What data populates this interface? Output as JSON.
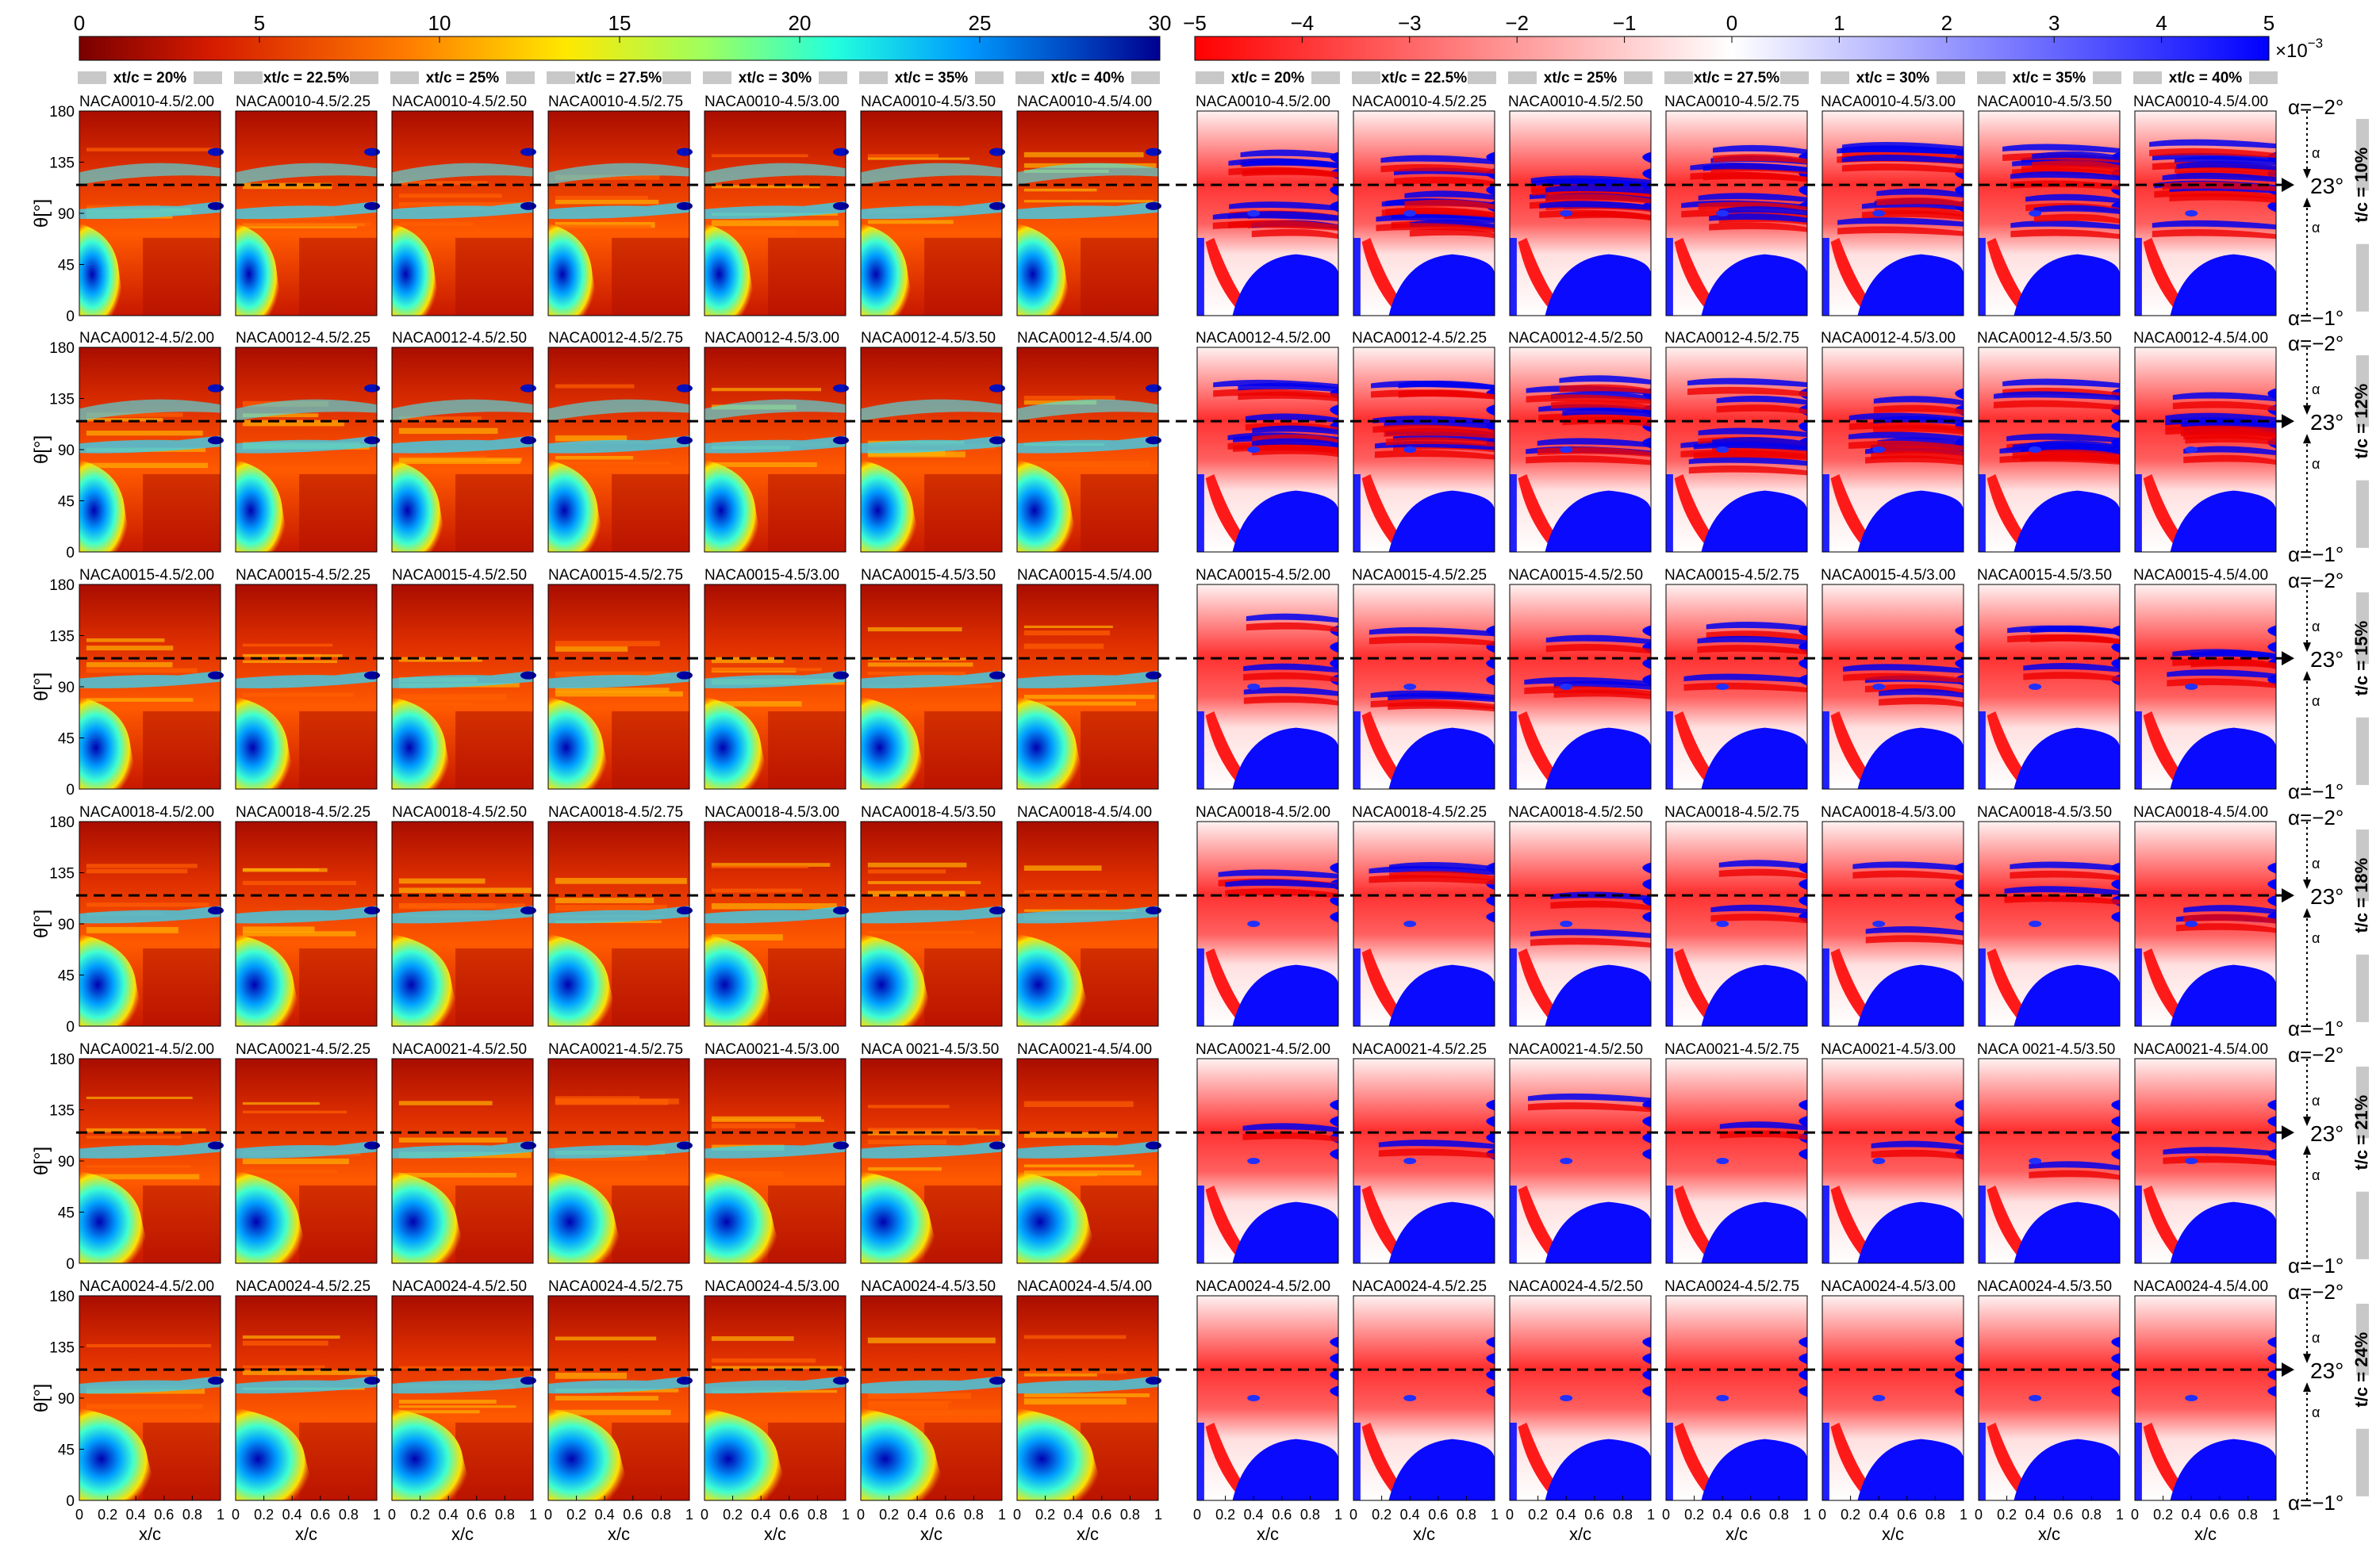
{
  "colorbar_left": {
    "min": 0,
    "max": 30,
    "ticks": [
      "0",
      "5",
      "10",
      "15",
      "20",
      "25",
      "30"
    ],
    "colormap": "jet-reversed"
  },
  "colorbar_right": {
    "min": -5,
    "max": 5,
    "ticks": [
      "−5",
      "−4",
      "−3",
      "−2",
      "−1",
      "0",
      "1",
      "2",
      "3",
      "4",
      "5"
    ],
    "scale_label": "×10",
    "scale_exp": "−3",
    "colormap": "bwr"
  },
  "column_headers": [
    "xt/c = 20%",
    "xt/c = 22.5%",
    "xt/c = 25%",
    "xt/c = 27.5%",
    "xt/c = 30%",
    "xt/c = 35%",
    "xt/c = 40%"
  ],
  "rows": [
    {
      "thickness": "t/c = 10%",
      "panels": [
        "NACA0010-4.5/2.00",
        "NACA0010-4.5/2.25",
        "NACA0010-4.5/2.50",
        "NACA0010-4.5/2.75",
        "NACA0010-4.5/3.00",
        "NACA0010-4.5/3.50",
        "NACA0010-4.5/4.00"
      ]
    },
    {
      "thickness": "t/c = 12%",
      "panels": [
        "NACA0012-4.5/2.00",
        "NACA0012-4.5/2.25",
        "NACA0012-4.5/2.50",
        "NACA0012-4.5/2.75",
        "NACA0012-4.5/3.00",
        "NACA0012-4.5/3.50",
        "NACA0012-4.5/4.00"
      ]
    },
    {
      "thickness": "t/c = 15%",
      "panels": [
        "NACA0015-4.5/2.00",
        "NACA0015-4.5/2.25",
        "NACA0015-4.5/2.50",
        "NACA0015-4.5/2.75",
        "NACA0015-4.5/3.00",
        "NACA0015-4.5/3.50",
        "NACA0015-4.5/4.00"
      ]
    },
    {
      "thickness": "t/c = 18%",
      "panels": [
        "NACA0018-4.5/2.00",
        "NACA0018-4.5/2.25",
        "NACA0018-4.5/2.50",
        "NACA0018-4.5/2.75",
        "NACA0018-4.5/3.00",
        "NACA0018-4.5/3.50",
        "NACA0018-4.5/4.00"
      ]
    },
    {
      "thickness": "t/c = 21%",
      "panels": [
        "NACA0021-4.5/2.00",
        "NACA0021-4.5/2.25",
        "NACA0021-4.5/2.50",
        "NACA0021-4.5/2.75",
        "NACA0021-4.5/3.00",
        "NACA 0021-4.5/3.50",
        "NACA0021-4.5/4.00"
      ]
    },
    {
      "thickness": "t/c = 24%",
      "panels": [
        "NACA0024-4.5/2.00",
        "NACA0024-4.5/2.25",
        "NACA0024-4.5/2.50",
        "NACA0024-4.5/2.75",
        "NACA0024-4.5/3.00",
        "NACA0024-4.5/3.50",
        "NACA0024-4.5/4.00"
      ]
    }
  ],
  "y_axis": {
    "label": "θ[°]",
    "ticks": [
      "0",
      "45",
      "90",
      "135",
      "180"
    ],
    "range": [
      0,
      180
    ]
  },
  "x_axis": {
    "label": "x/c",
    "ticks": [
      "0",
      "0.2",
      "0.4",
      "0.6",
      "0.8",
      "1"
    ],
    "range": [
      0,
      1
    ]
  },
  "reference_line_theta": 115,
  "alpha_annotations": {
    "top": "α=−2°",
    "mid": "23°",
    "bottom": "α=−1°",
    "arrow_label": "α"
  },
  "chart_data": {
    "type": "heatmap",
    "grid": {
      "rows": 6,
      "columns_per_group": 7,
      "groups": 2
    },
    "x_range": [
      0,
      1
    ],
    "y_range": [
      0,
      180
    ],
    "xlabel": "x/c",
    "ylabel": "θ[°]",
    "colorbar_left_range": [
      0,
      30
    ],
    "colorbar_right_range": [
      -0.005,
      0.005
    ],
    "reference_line_y": 115
  }
}
